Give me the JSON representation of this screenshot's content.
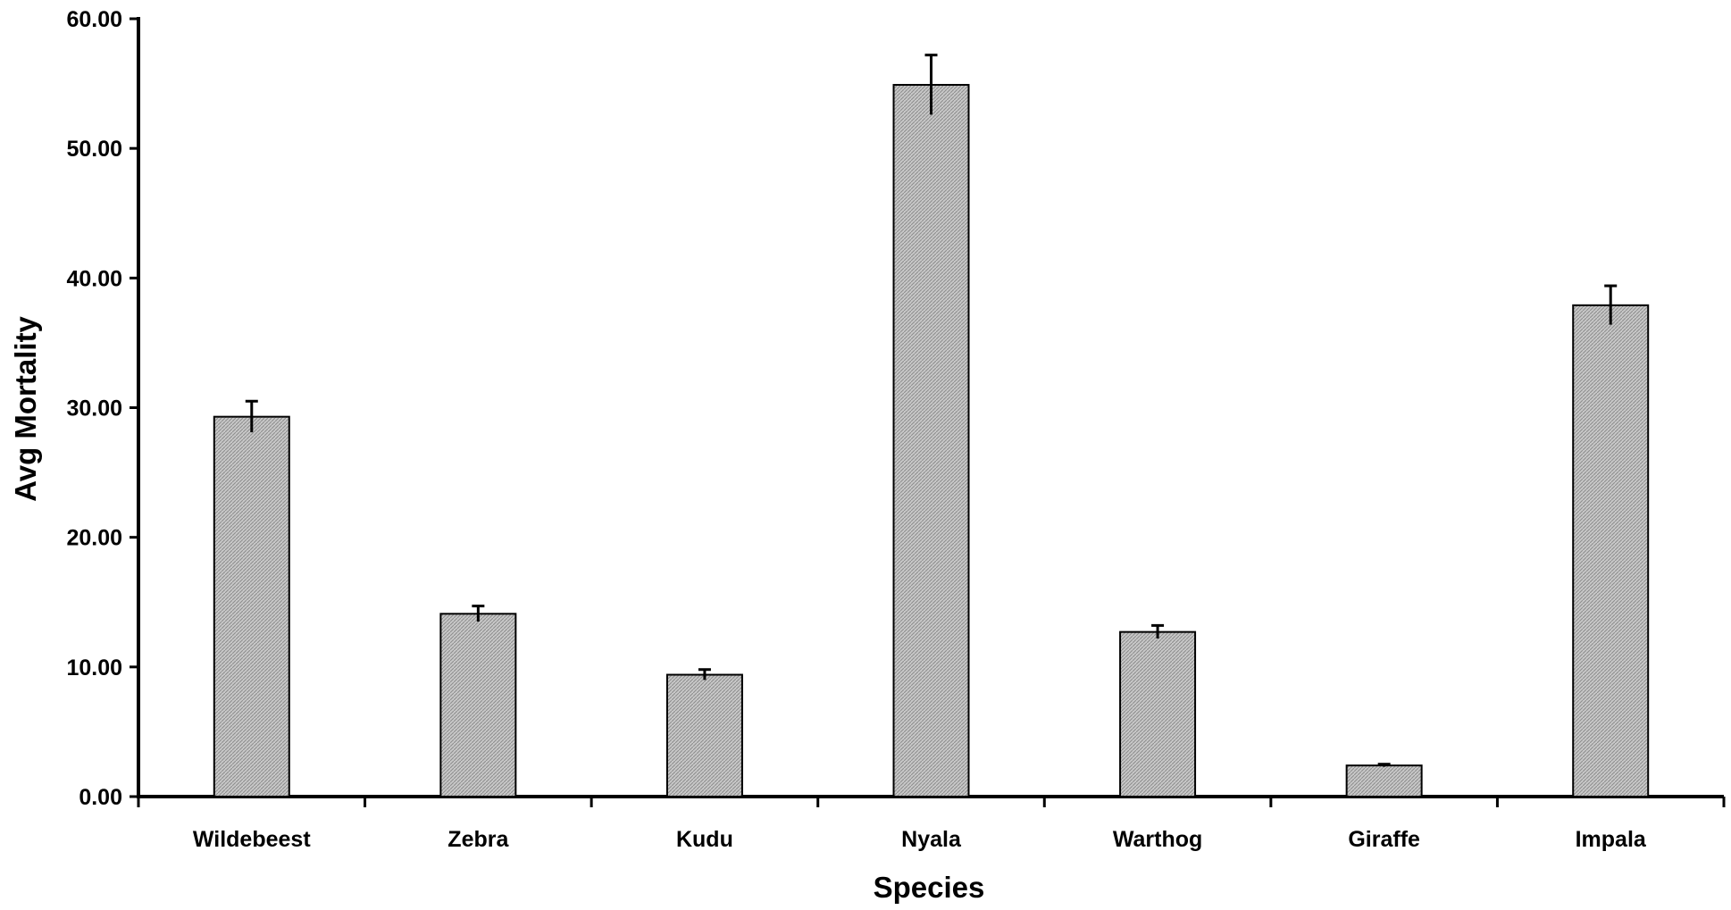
{
  "chart_data": {
    "type": "bar",
    "title": "",
    "xlabel": "Species",
    "ylabel": "Avg Mortality",
    "categories": [
      "Wildebeest",
      "Zebra",
      "Kudu",
      "Nyala",
      "Warthog",
      "Giraffe",
      "Impala"
    ],
    "values": [
      29.3,
      14.1,
      9.4,
      54.9,
      12.7,
      2.4,
      37.9
    ],
    "error_plus": [
      1.2,
      0.6,
      0.4,
      2.3,
      0.5,
      0.1,
      1.5
    ],
    "yticks": [
      "0.00",
      "10.00",
      "20.00",
      "30.00",
      "40.00",
      "50.00",
      "60.00"
    ],
    "ylim": [
      0,
      60
    ],
    "grid": false,
    "legend": "none",
    "bar_fill": "#b4b4b4",
    "bar_pattern": "#8c8c8c"
  }
}
